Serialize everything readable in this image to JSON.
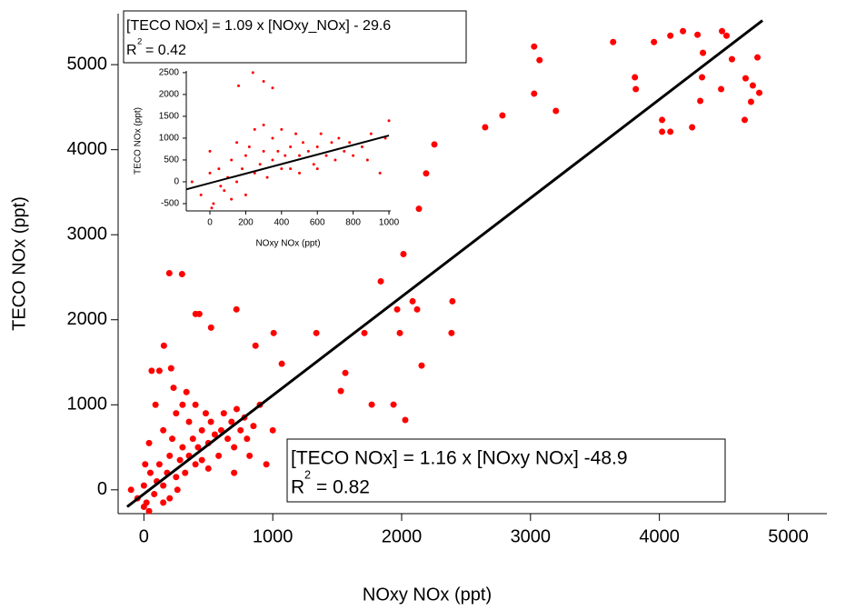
{
  "chart_data": [
    {
      "type": "scatter",
      "xlabel": "NOxy NOx (ppt)",
      "ylabel": "TECO NOx (ppt)",
      "xlim": [
        -200,
        5300
      ],
      "ylim": [
        -280,
        5600
      ],
      "xticks": [
        0,
        1000,
        2000,
        3000,
        4000,
        5000
      ],
      "yticks": [
        0,
        1000,
        2000,
        3000,
        4000,
        5000
      ],
      "series": [
        {
          "color": "#ff0000",
          "x": [
            4486,
            4521,
            4296,
            4183,
            4085,
            3958,
            3641,
            3028,
            3070,
            3028,
            3810,
            3817,
            3197,
            4338,
            4563,
            4761,
            4669,
            4711,
            4775,
            4725,
            4331,
            4317,
            4479,
            4662,
            4021,
            4021,
            4085,
            4254,
            2782,
            2648,
            2254,
            2190,
            2134,
            2014,
            1838,
            2085,
            2120,
            1965,
            1711,
            1986,
            2387,
            2394,
            2155,
            1338,
            1007,
            866,
            1070,
            718,
            197,
            296,
            401,
            430,
            521,
            1563,
            1528,
            1768,
            1937,
            2028,
            211,
            155,
            -100,
            -50,
            0,
            20,
            50,
            80,
            100,
            120,
            150,
            150,
            180,
            200,
            200,
            220,
            250,
            250,
            280,
            300,
            300,
            320,
            350,
            350,
            380,
            400,
            400,
            420,
            450,
            450,
            480,
            500,
            500,
            520,
            550,
            580,
            600,
            620,
            650,
            680,
            700,
            720,
            750,
            780,
            800,
            850,
            900,
            950,
            1000,
            60,
            120,
            230,
            330,
            0,
            40,
            150,
            260,
            700,
            820,
            90,
            40,
            10
          ],
          "y": [
            5394,
            5341,
            5352,
            5394,
            5341,
            5266,
            5266,
            5213,
            5053,
            4659,
            4851,
            4712,
            4456,
            5139,
            5064,
            5085,
            4840,
            4563,
            4669,
            4755,
            4851,
            4574,
            4712,
            4350,
            4350,
            4211,
            4211,
            4264,
            4403,
            4264,
            4062,
            3721,
            3305,
            2772,
            2452,
            2217,
            2122,
            2122,
            1844,
            1844,
            1844,
            2217,
            1461,
            1844,
            1844,
            1695,
            1482,
            2122,
            2548,
            2537,
            2068,
            2068,
            1908,
            1375,
            1162,
            1002,
            1002,
            821,
            1429,
            1695,
            0,
            -100,
            50,
            -150,
            200,
            -50,
            100,
            300,
            50,
            700,
            200,
            400,
            -100,
            600,
            150,
            900,
            350,
            500,
            1000,
            200,
            400,
            800,
            600,
            300,
            1000,
            500,
            700,
            350,
            900,
            550,
            250,
            800,
            650,
            400,
            700,
            900,
            600,
            800,
            500,
            950,
            700,
            850,
            600,
            750,
            1000,
            300,
            700,
            1400,
            1400,
            1200,
            1150,
            -200,
            -250,
            -150,
            0,
            200,
            400,
            1000,
            550,
            300
          ]
        }
      ],
      "fit_line": {
        "color": "#000000",
        "x": [
          -130,
          4800
        ],
        "y": [
          -199.7,
          5519.1
        ]
      },
      "annotation": {
        "text": "[TECO NOx] = 1.16 x [NOxy NOx] -48.9",
        "r": "R",
        "exp": "2",
        "r_value": "= 0.82"
      }
    },
    {
      "type": "scatter",
      "xlabel": "NOxy NOx (ppt)",
      "ylabel": "TECO NOx (ppt)",
      "xlim": [
        -132,
        1010
      ],
      "ylim": [
        -667,
        2540
      ],
      "xticks": [
        0,
        200,
        400,
        600,
        800,
        1000
      ],
      "yticks": [
        -500,
        0,
        500,
        1000,
        1500,
        2000,
        2500
      ],
      "series": [
        {
          "color": "#ff0000",
          "x": [
            -100,
            -50,
            0,
            20,
            50,
            80,
            100,
            120,
            150,
            150,
            180,
            200,
            200,
            220,
            250,
            250,
            280,
            300,
            300,
            320,
            350,
            350,
            380,
            400,
            400,
            420,
            450,
            450,
            480,
            500,
            500,
            520,
            550,
            580,
            600,
            620,
            650,
            680,
            700,
            720,
            750,
            780,
            800,
            850,
            900,
            950,
            1000,
            160,
            240,
            300,
            350,
            120,
            10,
            600,
            880,
            980,
            0,
            60
          ],
          "y": [
            0,
            -300,
            200,
            -500,
            300,
            -200,
            100,
            500,
            0,
            900,
            300,
            600,
            -300,
            800,
            200,
            1200,
            400,
            700,
            1300,
            100,
            500,
            1000,
            700,
            300,
            1200,
            600,
            800,
            300,
            1100,
            600,
            200,
            900,
            700,
            400,
            800,
            1100,
            600,
            900,
            500,
            1000,
            700,
            900,
            600,
            800,
            1100,
            200,
            1400,
            2200,
            2500,
            2300,
            2150,
            -400,
            -600,
            300,
            500,
            1000,
            700,
            -100
          ]
        }
      ],
      "fit_line": {
        "color": "#000000",
        "x": [
          -130,
          1000
        ],
        "y": [
          -171.3,
          1060.4
        ]
      },
      "annotation": {
        "text": "[TECO NOx] = 1.09 x [NOxy_NOx] - 29.6",
        "r": "R",
        "exp": "2",
        "r_value": "= 0.42"
      }
    }
  ]
}
